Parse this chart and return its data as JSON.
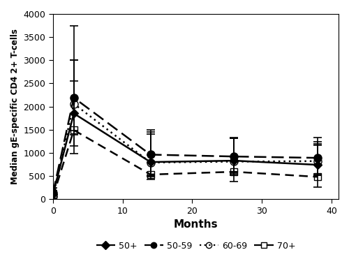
{
  "series": {
    "50+": {
      "x": [
        0,
        3,
        14,
        26,
        38
      ],
      "y": [
        100,
        1850,
        800,
        830,
        740
      ],
      "yerr_low": [
        85,
        700,
        280,
        260,
        230
      ],
      "yerr_high": [
        85,
        700,
        650,
        490,
        420
      ],
      "marker": "D",
      "markersize": 6,
      "fillstyle": "full",
      "ls_key": "solid"
    },
    "50-59": {
      "x": [
        0,
        3,
        14,
        26,
        38
      ],
      "y": [
        130,
        2190,
        960,
        920,
        890
      ],
      "yerr_low": [
        110,
        800,
        460,
        380,
        340
      ],
      "yerr_high": [
        110,
        1560,
        530,
        410,
        440
      ],
      "marker": "o",
      "markersize": 8,
      "fillstyle": "full",
      "ls_key": "dashed_long"
    },
    "60-69": {
      "x": [
        0,
        3,
        14,
        26,
        38
      ],
      "y": [
        60,
        2060,
        790,
        810,
        820
      ],
      "yerr_low": [
        50,
        580,
        300,
        300,
        300
      ],
      "yerr_high": [
        50,
        940,
        620,
        510,
        420
      ],
      "marker": "o",
      "markersize": 8,
      "fillstyle": "none",
      "ls_key": "dotted"
    },
    "70+": {
      "x": [
        0,
        3,
        14,
        26,
        38
      ],
      "y": [
        50,
        1490,
        530,
        590,
        480
      ],
      "yerr_low": [
        40,
        510,
        110,
        210,
        220
      ],
      "yerr_high": [
        40,
        1510,
        420,
        730,
        720
      ],
      "marker": "s",
      "markersize": 7,
      "fillstyle": "none",
      "ls_key": "dashed"
    }
  },
  "xlabel": "Months",
  "ylabel": "Median gE-specific CD4 2+ T-cells",
  "xlim": [
    0,
    41
  ],
  "ylim": [
    0,
    4000
  ],
  "yticks": [
    0,
    500,
    1000,
    1500,
    2000,
    2500,
    3000,
    3500,
    4000
  ],
  "xticks": [
    0,
    10,
    20,
    30,
    40
  ],
  "legend_order": [
    "50+",
    "50-59",
    "60-69",
    "70+"
  ],
  "background_color": "#ffffff",
  "linewidth": 1.8,
  "capsize": 4,
  "elinewidth": 1.2
}
